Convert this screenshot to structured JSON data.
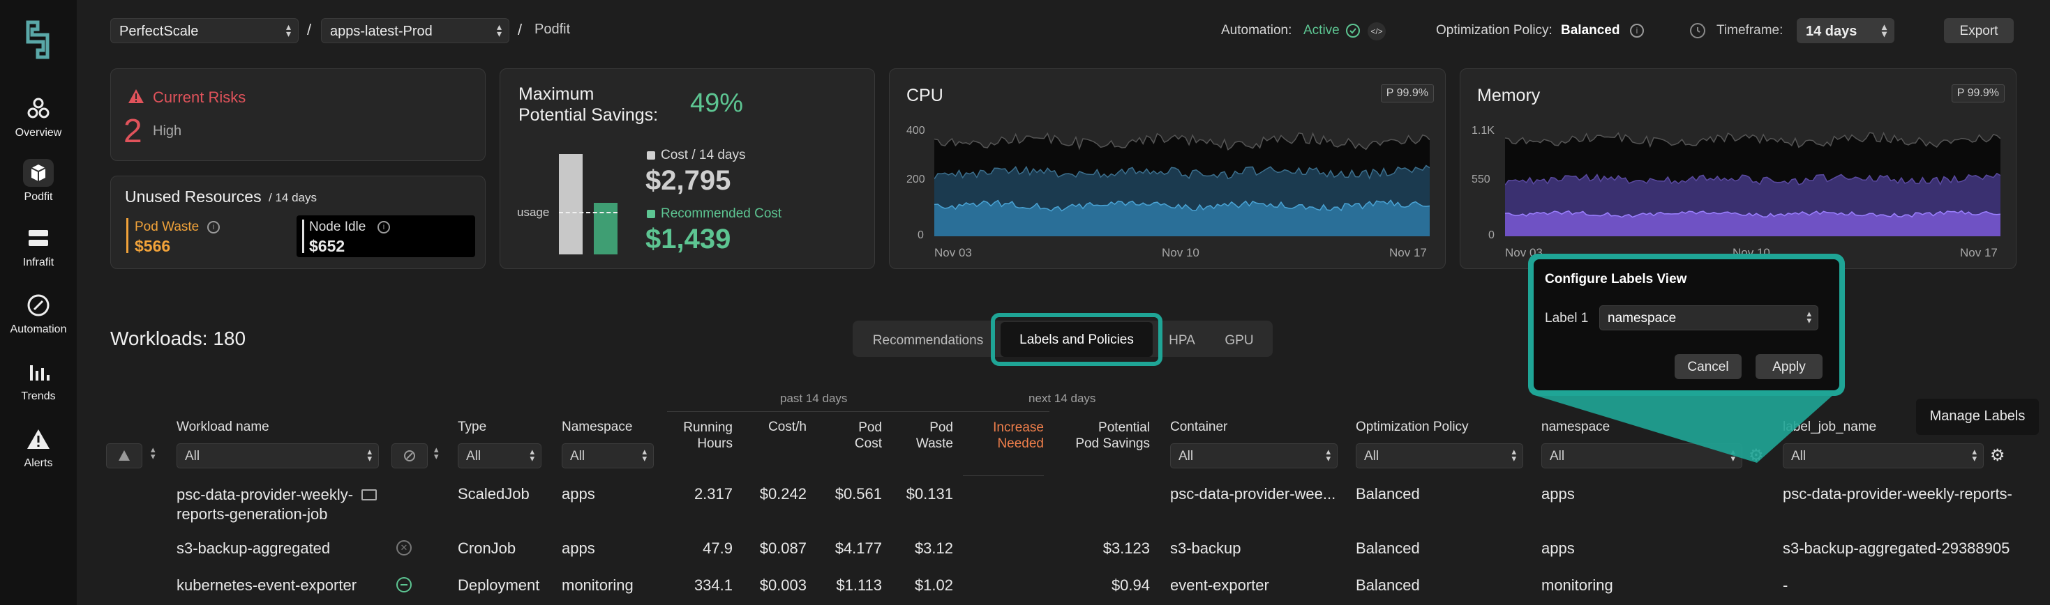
{
  "nav": {
    "items": [
      {
        "label": "Overview",
        "icon": "overview-icon"
      },
      {
        "label": "Podfit",
        "icon": "podfit-icon"
      },
      {
        "label": "Infrafit",
        "icon": "infrafit-icon"
      },
      {
        "label": "Automation",
        "icon": "automation-icon"
      },
      {
        "label": "Trends",
        "icon": "trends-icon"
      },
      {
        "label": "Alerts",
        "icon": "alerts-icon"
      }
    ]
  },
  "topbar": {
    "org_select": "PerfectScale",
    "cluster_select": "apps-latest-Prod",
    "sep": "/",
    "page": "Podfit",
    "automation_label": "Automation:",
    "automation_value": "Active",
    "policy_label": "Optimization Policy:",
    "policy_value": "Balanced",
    "timeframe_label": "Timeframe:",
    "timeframe_value": "14 days",
    "export_label": "Export"
  },
  "risks": {
    "title": "Current Risks",
    "count": "2",
    "level": "High"
  },
  "unused": {
    "title": "Unused Resources",
    "period": "/ 14 days",
    "pod_waste_label": "Pod Waste",
    "pod_waste_value": "$566",
    "node_idle_label": "Node Idle",
    "node_idle_value": "$652"
  },
  "savings": {
    "title_line1": "Maximum",
    "title_line2": "Potential Savings:",
    "percent": "49%",
    "usage_label": "usage",
    "cost_label": "Cost / 14 days",
    "cost_value": "$2,795",
    "rec_label": "Recommended Cost",
    "rec_value": "$1,439",
    "cost_amount": 2795,
    "rec_amount": 1439
  },
  "cpu": {
    "title": "CPU",
    "badge": "P 99.9%",
    "y_ticks": [
      "400",
      "200",
      "0"
    ],
    "x_ticks": [
      "Nov 03",
      "Nov 10",
      "Nov 17"
    ]
  },
  "memory": {
    "title": "Memory",
    "badge": "P 99.9%",
    "y_ticks": [
      "1.1K",
      "550",
      "0"
    ],
    "x_ticks": [
      "Nov 03",
      "Nov 10",
      "Nov 17"
    ]
  },
  "workloads": {
    "title": "Workloads: 180"
  },
  "tabs": [
    "Recommendations",
    "Labels and Policies",
    "HPA",
    "GPU"
  ],
  "active_tab": "Labels and Policies",
  "popup": {
    "title": "Configure Labels View",
    "label1": "Label 1",
    "label1_value": "namespace",
    "cancel": "Cancel",
    "apply": "Apply"
  },
  "tooltip": {
    "text": "Manage Labels"
  },
  "table": {
    "group_past": "past 14 days",
    "group_next": "next 14 days",
    "headers": {
      "workload": "Workload name",
      "type": "Type",
      "namespace": "Namespace",
      "running_hours_1": "Running",
      "running_hours_2": "Hours",
      "cost_h": "Cost/h",
      "pod_cost_1": "Pod",
      "pod_cost_2": "Cost",
      "pod_waste_1": "Pod",
      "pod_waste_2": "Waste",
      "increase_1": "Increase",
      "increase_2": "Needed",
      "savings_1": "Potential",
      "savings_2": "Pod Savings",
      "container": "Container",
      "policy": "Optimization Policy",
      "label_ns": "namespace",
      "label_job": "label_job_name"
    },
    "filter_all": "All",
    "rows": [
      {
        "name1": "psc-data-provider-weekly-",
        "name2": "reports-generation-job",
        "type": "ScaledJob",
        "namespace": "apps",
        "hours": "2.317",
        "cost_h": "$0.242",
        "pod_cost": "$0.561",
        "waste": "$0.131",
        "increase": "",
        "savings": "",
        "container": "psc-data-provider-wee...",
        "policy": "Balanced",
        "label_ns": "apps",
        "label_job": "psc-data-provider-weekly-reports-"
      },
      {
        "name1": "s3-backup-aggregated",
        "name2": "",
        "type": "CronJob",
        "namespace": "apps",
        "hours": "47.9",
        "cost_h": "$0.087",
        "pod_cost": "$4.177",
        "waste": "$3.12",
        "increase": "",
        "savings": "$3.123",
        "container": "s3-backup",
        "policy": "Balanced",
        "label_ns": "apps",
        "label_job": "s3-backup-aggregated-29388905"
      },
      {
        "name1": "kubernetes-event-exporter",
        "name2": "",
        "type": "Deployment",
        "namespace": "monitoring",
        "hours": "334.1",
        "cost_h": "$0.003",
        "pod_cost": "$1.113",
        "waste": "$1.02",
        "increase": "",
        "savings": "$0.94",
        "container": "event-exporter",
        "policy": "Balanced",
        "label_ns": "monitoring",
        "label_job": "-"
      }
    ]
  },
  "colors": {
    "accent": "#5dc592",
    "highlight": "#1fa596",
    "danger": "#e0535b",
    "warn": "#f2a33a",
    "cpu_fill": "#2a6f98",
    "mem_fill": "#6f52c4"
  }
}
